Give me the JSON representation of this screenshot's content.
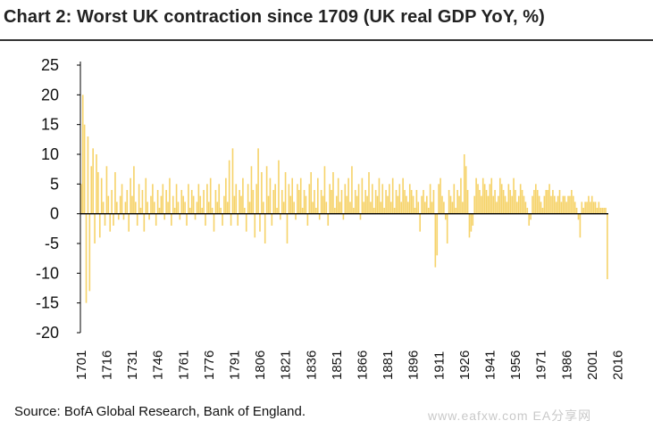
{
  "title": "Chart 2: Worst UK contraction since 1709 (UK real GDP YoY, %)",
  "source": "Source: BofA Global Research, Bank of England.",
  "watermark": "www.eafxw.com EA分享网",
  "colors": {
    "bar": "#f6d36a",
    "axis": "#000000",
    "title_rule": "#333333"
  },
  "chart_data": {
    "type": "bar",
    "title": "Chart 2: Worst UK contraction since 1709 (UK real GDP YoY, %)",
    "xlabel": "",
    "ylabel": "",
    "ylim": [
      -20,
      25
    ],
    "yticks": [
      25,
      20,
      15,
      10,
      5,
      0,
      -5,
      -10,
      -15,
      -20
    ],
    "xticks": [
      1701,
      1716,
      1731,
      1746,
      1761,
      1776,
      1791,
      1806,
      1821,
      1836,
      1851,
      1866,
      1881,
      1896,
      1911,
      1926,
      1941,
      1956,
      1971,
      1986,
      2001,
      2016
    ],
    "x_start": 1701,
    "grid": false,
    "values": [
      5,
      20,
      15,
      -15,
      13,
      -13,
      8,
      11,
      -5,
      10,
      7,
      -4,
      6,
      2,
      -2,
      8,
      3,
      -3,
      4,
      -2,
      7,
      2,
      -1,
      3,
      5,
      -1,
      2,
      4,
      -3,
      6,
      3,
      8,
      2,
      -2,
      5,
      1,
      4,
      -3,
      6,
      2,
      -1,
      3,
      5,
      2,
      -2,
      4,
      1,
      3,
      5,
      -1,
      4,
      2,
      6,
      -2,
      3,
      1,
      5,
      2,
      -1,
      4,
      3,
      2,
      -2,
      5,
      1,
      4,
      3,
      -1,
      2,
      5,
      3,
      1,
      4,
      -2,
      5,
      2,
      6,
      1,
      -3,
      4,
      2,
      5,
      1,
      -2,
      3,
      6,
      2,
      9,
      -2,
      11,
      3,
      5,
      -2,
      4,
      3,
      6,
      1,
      -3,
      5,
      2,
      8,
      4,
      -4,
      5,
      11,
      -3,
      7,
      2,
      -5,
      8,
      3,
      6,
      -2,
      4,
      5,
      1,
      9,
      -1,
      4,
      2,
      7,
      -5,
      5,
      3,
      6,
      2,
      -1,
      5,
      4,
      6,
      1,
      4,
      3,
      -2,
      5,
      7,
      2,
      4,
      1,
      6,
      -1,
      4,
      3,
      8,
      2,
      -2,
      5,
      4,
      7,
      1,
      3,
      6,
      2,
      4,
      -1,
      5,
      3,
      6,
      2,
      8,
      1,
      4,
      3,
      5,
      -1,
      6,
      2,
      4,
      3,
      7,
      2,
      5,
      1,
      4,
      3,
      6,
      2,
      5,
      1,
      4,
      3,
      5,
      2,
      6,
      1,
      4,
      3,
      5,
      2,
      6,
      4,
      3,
      2,
      5,
      4,
      3,
      1,
      4,
      2,
      -3,
      3,
      4,
      2,
      3,
      1,
      5,
      2,
      4,
      -9,
      -7,
      5,
      6,
      3,
      2,
      -1,
      -5,
      4,
      3,
      2,
      5,
      1,
      4,
      3,
      6,
      2,
      10,
      8,
      4,
      -4,
      -3,
      -2,
      3,
      6,
      5,
      4,
      3,
      6,
      5,
      4,
      3,
      5,
      6,
      3,
      4,
      2,
      3,
      6,
      5,
      4,
      3,
      2,
      5,
      4,
      3,
      6,
      4,
      2,
      3,
      5,
      4,
      3,
      2,
      1,
      -2,
      -1,
      3,
      4,
      5,
      4,
      3,
      2,
      1,
      3,
      4,
      4,
      5,
      3,
      4,
      3,
      2,
      3,
      4,
      2,
      3,
      3,
      2,
      3,
      3,
      4,
      3,
      2,
      1,
      -1,
      -4,
      2,
      1,
      2,
      2,
      3,
      2,
      3,
      2,
      2,
      1,
      2,
      1,
      1,
      1,
      1,
      -11
    ]
  }
}
